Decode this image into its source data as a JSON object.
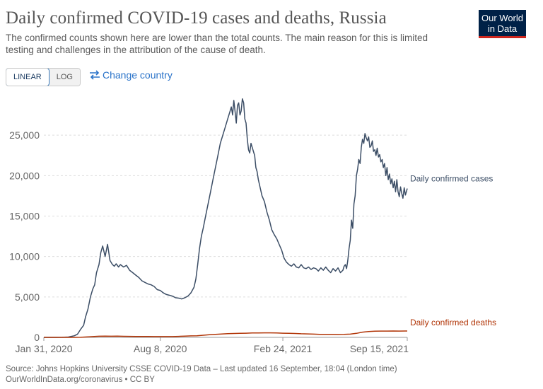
{
  "header": {
    "title": "Daily confirmed COVID-19 cases and deaths, Russia",
    "subtitle": "The confirmed counts shown here are lower than the total counts. The main reason for this is limited testing and challenges in the attribution of the cause of death."
  },
  "logo": {
    "line1": "Our World",
    "line2": "in Data"
  },
  "controls": {
    "linear_label": "LINEAR",
    "log_label": "LOG",
    "change_country_label": "Change country",
    "change_country_icon": "swap-arrows-icon"
  },
  "footer": {
    "source": "Source: Johns Hopkins University CSSE COVID-19 Data – Last updated 16 September, 18:04 (London time)",
    "url": "OurWorldInData.org/coronavirus • CC BY"
  },
  "colors": {
    "cases": "#3c4e66",
    "deaths": "#b13507",
    "grid": "#dddddd",
    "axis": "#999999"
  },
  "chart_data": {
    "type": "line",
    "title": "Daily confirmed COVID-19 cases and deaths, Russia",
    "xlabel": "",
    "ylabel": "",
    "x_unit": "days since Jan 31, 2020",
    "xlim": [
      0,
      593
    ],
    "ylim": [
      0,
      30000
    ],
    "yticks": [
      0,
      5000,
      10000,
      15000,
      20000,
      25000
    ],
    "ytick_labels": [
      "0",
      "5,000",
      "10,000",
      "15,000",
      "20,000",
      "25,000"
    ],
    "xticks": [
      0,
      190,
      390,
      593
    ],
    "xtick_labels": [
      "Jan 31, 2020",
      "Aug 8, 2020",
      "Feb 24, 2021",
      "Sep 15, 2021"
    ],
    "grid": true,
    "legend": "end-of-line labels",
    "series": [
      {
        "name": "Daily confirmed cases",
        "x": [
          0,
          10,
          20,
          30,
          40,
          50,
          55,
          60,
          65,
          68,
          72,
          76,
          80,
          83,
          86,
          90,
          93,
          96,
          100,
          104,
          108,
          112,
          115,
          118,
          122,
          125,
          130,
          135,
          140,
          145,
          150,
          155,
          160,
          165,
          170,
          175,
          180,
          185,
          190,
          195,
          200,
          205,
          210,
          215,
          220,
          225,
          230,
          235,
          240,
          245,
          248,
          251,
          254,
          257,
          260,
          264,
          268,
          272,
          276,
          280,
          284,
          288,
          292,
          296,
          300,
          304,
          306,
          308,
          310,
          312,
          314,
          316,
          318,
          320,
          322,
          324,
          326,
          328,
          330,
          332,
          334,
          336,
          338,
          340,
          342,
          344,
          346,
          348,
          350,
          353,
          356,
          360,
          364,
          368,
          372,
          376,
          380,
          384,
          388,
          392,
          396,
          400,
          404,
          408,
          412,
          416,
          420,
          424,
          428,
          432,
          436,
          440,
          444,
          448,
          452,
          456,
          460,
          464,
          468,
          472,
          476,
          480,
          484,
          488,
          490,
          492,
          494,
          496,
          498,
          500,
          502,
          504,
          506,
          508,
          510,
          512,
          514,
          516,
          518,
          520,
          522,
          524,
          526,
          528,
          530,
          532,
          534,
          536,
          538,
          540,
          542,
          544,
          546,
          548,
          550,
          552,
          554,
          556,
          558,
          560,
          562,
          564,
          566,
          568,
          570,
          572,
          574,
          576,
          578,
          580,
          582,
          584,
          586,
          588,
          590,
          593
        ],
        "y": [
          0,
          0,
          0,
          10,
          40,
          200,
          400,
          1000,
          1500,
          2500,
          3500,
          5000,
          6000,
          6500,
          8000,
          9000,
          10500,
          11300,
          10000,
          11500,
          9500,
          9000,
          8800,
          9100,
          8700,
          9000,
          8700,
          8900,
          8300,
          8000,
          7700,
          7400,
          7000,
          6800,
          6600,
          6500,
          6300,
          5900,
          5800,
          5500,
          5300,
          5200,
          5100,
          4900,
          4850,
          4750,
          4900,
          5100,
          5500,
          6200,
          7200,
          9000,
          11000,
          12500,
          13500,
          15000,
          16500,
          18000,
          19500,
          21000,
          22500,
          24000,
          25000,
          26000,
          27000,
          28000,
          28500,
          27500,
          29300,
          28000,
          26500,
          28700,
          29000,
          27500,
          28000,
          29500,
          29000,
          27000,
          26500,
          24500,
          23200,
          22800,
          24000,
          23500,
          23000,
          22500,
          21000,
          20500,
          19500,
          18500,
          17500,
          16800,
          15500,
          14500,
          13300,
          12700,
          12200,
          11500,
          10800,
          9800,
          9300,
          9000,
          8800,
          9100,
          8700,
          8600,
          9000,
          8600,
          8500,
          8700,
          8400,
          8600,
          8500,
          8200,
          8600,
          8300,
          8700,
          8300,
          8000,
          8500,
          8200,
          8600,
          8000,
          8300,
          8800,
          9000,
          8500,
          9500,
          11000,
          12000,
          14500,
          13500,
          16500,
          17500,
          20000,
          20800,
          22000,
          21500,
          23500,
          24500,
          24000,
          25200,
          24700,
          24300,
          24800,
          23500,
          23700,
          24300,
          23000,
          23200,
          22500,
          23400,
          22300,
          22600,
          21700,
          22000,
          21000,
          21500,
          20000,
          21000,
          19500,
          20200,
          19000,
          19600,
          18500,
          19300,
          18000,
          19500,
          18000,
          17400,
          18600,
          17800,
          17200,
          18500,
          17600,
          18400
        ]
      },
      {
        "name": "Daily confirmed deaths",
        "x": [
          0,
          40,
          50,
          60,
          70,
          80,
          90,
          100,
          110,
          120,
          130,
          140,
          150,
          160,
          170,
          180,
          190,
          200,
          210,
          220,
          230,
          240,
          250,
          260,
          270,
          280,
          290,
          300,
          310,
          320,
          330,
          340,
          350,
          360,
          370,
          380,
          390,
          400,
          410,
          420,
          430,
          440,
          450,
          460,
          470,
          480,
          490,
          500,
          510,
          520,
          530,
          540,
          550,
          560,
          570,
          580,
          590,
          593
        ],
        "y": [
          0,
          0,
          2,
          10,
          50,
          100,
          140,
          150,
          140,
          150,
          130,
          120,
          115,
          110,
          105,
          100,
          95,
          95,
          100,
          120,
          160,
          180,
          200,
          260,
          320,
          370,
          420,
          460,
          480,
          500,
          520,
          540,
          550,
          560,
          560,
          540,
          520,
          500,
          480,
          450,
          430,
          400,
          380,
          370,
          370,
          360,
          370,
          400,
          500,
          650,
          720,
          760,
          780,
          780,
          790,
          780,
          790,
          790
        ]
      }
    ]
  }
}
